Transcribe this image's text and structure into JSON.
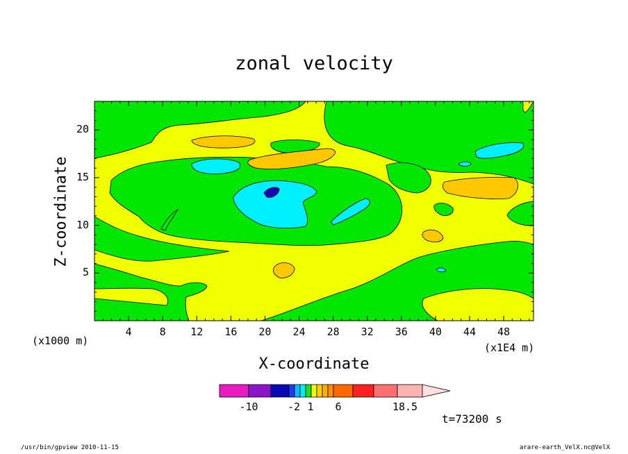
{
  "chart_data": {
    "type": "heatmap",
    "title": "zonal velocity",
    "xlabel": "X-coordinate",
    "ylabel": "Z-coordinate",
    "x_unit_left": "(x1000 m)",
    "x_unit_right": "(x1E4 m)",
    "xlim": [
      0,
      51.5
    ],
    "ylim": [
      0,
      23
    ],
    "x_ticks": [
      "4",
      "8",
      "12",
      "16",
      "20",
      "24",
      "28",
      "32",
      "36",
      "40",
      "44",
      "48"
    ],
    "y_ticks": [
      "5",
      "10",
      "15",
      "20"
    ],
    "colorbar": {
      "colors": [
        "#e81ac0",
        "#8a16c8",
        "#0a0ab4",
        "#1a3cf0",
        "#14b4ff",
        "#00f0f0",
        "#22dc22",
        "#f0ff00",
        "#ffd000",
        "#ffb000",
        "#ff9000",
        "#ff6a00",
        "#ff2020",
        "#ff7070",
        "#ffb4b4"
      ],
      "labels": [
        "-10",
        "-2",
        "1",
        "6",
        "18.5"
      ]
    },
    "levels_colors": {
      "negative_strong": "#0a0ab4",
      "negative": "#00f0ff",
      "near_zero": "#00e600",
      "positive_small": "#f0ff00",
      "positive": "#ffc800"
    }
  },
  "annotation": {
    "time": "t=73200 s"
  },
  "footer": {
    "left": "/usr/bin/gpview   2010-11-15",
    "right": "arare-earth_VelX.nc@VelX"
  }
}
